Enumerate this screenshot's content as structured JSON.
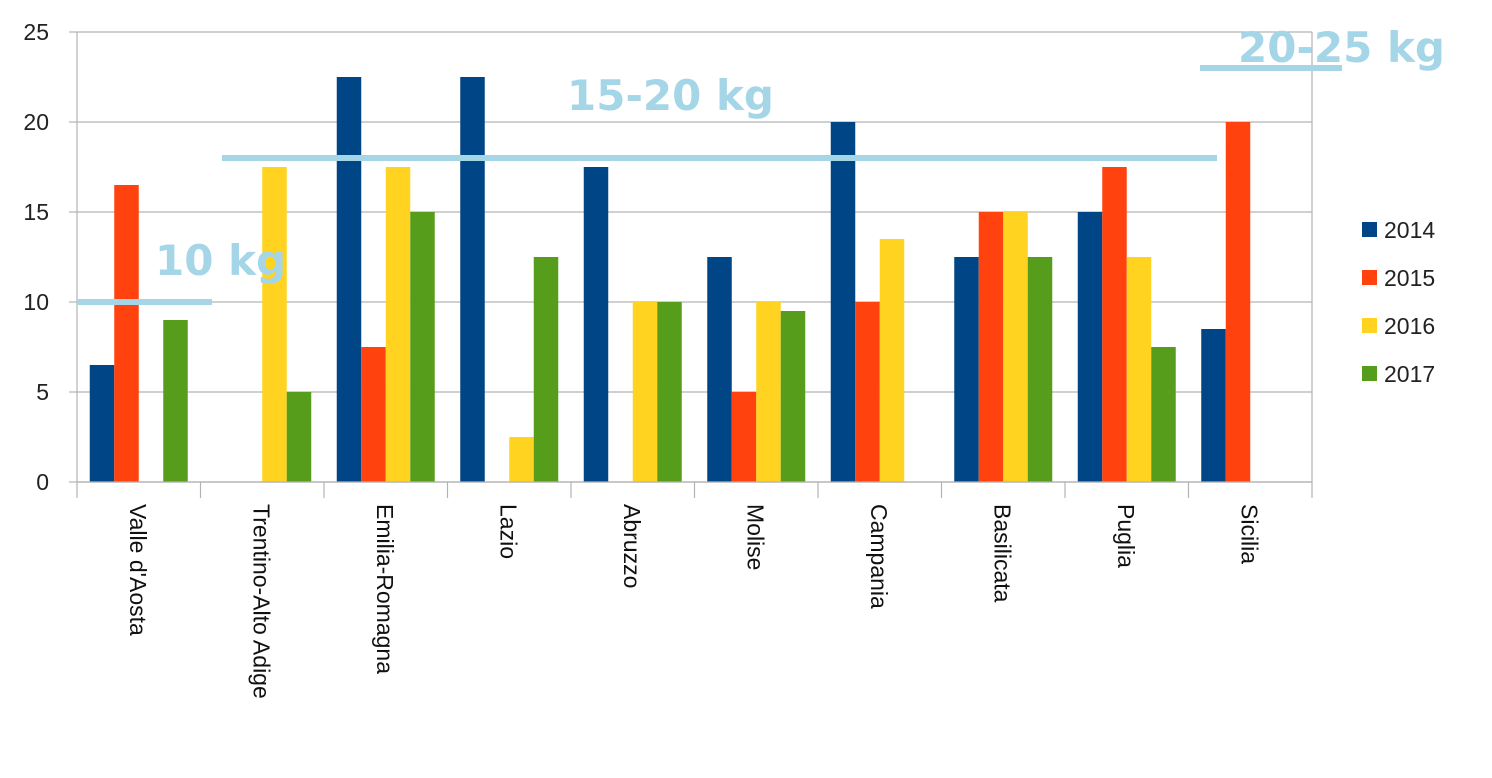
{
  "chart_data": {
    "type": "bar",
    "title": "",
    "xlabel": "",
    "ylabel": "",
    "ylim": [
      0,
      25
    ],
    "yticks": [
      0,
      5,
      10,
      15,
      20,
      25
    ],
    "grid": true,
    "legend_position": "right",
    "categories": [
      "Valle d'Aosta",
      "Trentino-Alto Adige",
      "Emilia-Romagna",
      "Lazio",
      "Abruzzo",
      "Molise",
      "Campania",
      "Basilicata",
      "Puglia",
      "Sicilia"
    ],
    "series": [
      {
        "name": "2014",
        "color": "#004586",
        "values": [
          6.5,
          0,
          22.5,
          22.5,
          17.5,
          12.5,
          20,
          12.5,
          15,
          8.5
        ]
      },
      {
        "name": "2015",
        "color": "#ff420e",
        "values": [
          16.5,
          0,
          7.5,
          0,
          0,
          5,
          10,
          15,
          17.5,
          20
        ]
      },
      {
        "name": "2016",
        "color": "#ffd320",
        "values": [
          0,
          17.5,
          17.5,
          2.5,
          10,
          10,
          13.5,
          15,
          12.5,
          0
        ]
      },
      {
        "name": "2017",
        "color": "#579d1c",
        "values": [
          9,
          5,
          15,
          12.5,
          10,
          9.5,
          0,
          12.5,
          7.5,
          0
        ]
      }
    ],
    "annotations": [
      {
        "text": "10 kg",
        "y": 10,
        "from_category": 0,
        "to_category": 0,
        "color": "#a5d6e8"
      },
      {
        "text": "15-20 kg",
        "y": 18,
        "from_category": 1,
        "to_category": 8,
        "color": "#a5d6e8"
      },
      {
        "text": "20-25 kg",
        "y": 23,
        "from_category": 9,
        "to_category": 9,
        "color": "#a5d6e8"
      }
    ]
  }
}
